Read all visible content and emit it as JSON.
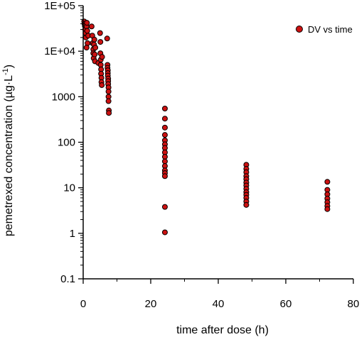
{
  "chart_data": {
    "type": "scatter",
    "xlabel": "time after dose (h)",
    "ylabel_main": "pemetrexed concentration (µg·L",
    "ylabel_sup": "-1",
    "ylabel_tail": ")",
    "xlim": [
      0,
      80
    ],
    "ylim": [
      0.1,
      100000
    ],
    "yscale": "log",
    "grid": false,
    "legend_position": "top-right",
    "x_ticks": [
      {
        "value": 0,
        "label": "0"
      },
      {
        "value": 20,
        "label": "20"
      },
      {
        "value": 40,
        "label": "40"
      },
      {
        "value": 60,
        "label": "60"
      },
      {
        "value": 80,
        "label": "80"
      }
    ],
    "y_ticks": [
      {
        "value": 100000,
        "label": "1E+05"
      },
      {
        "value": 10000,
        "label": "1E+04"
      },
      {
        "value": 1000,
        "label": "1000"
      },
      {
        "value": 100,
        "label": "100"
      },
      {
        "value": 10,
        "label": "10"
      },
      {
        "value": 1,
        "label": "1"
      },
      {
        "value": 0.1,
        "label": "0.1"
      }
    ],
    "series": [
      {
        "name": "DV vs time",
        "color": "#cc1111",
        "points": [
          [
            0.3,
            45000
          ],
          [
            0.4,
            40000
          ],
          [
            0.5,
            36000
          ],
          [
            0.6,
            30000
          ],
          [
            0.7,
            25000
          ],
          [
            0.8,
            20000
          ],
          [
            1.0,
            35000
          ],
          [
            1.1,
            42000
          ],
          [
            1.2,
            28000
          ],
          [
            1.3,
            15000
          ],
          [
            1.5,
            22000
          ],
          [
            1.0,
            12000
          ],
          [
            2.5,
            35000
          ],
          [
            2.7,
            22000
          ],
          [
            2.8,
            15000
          ],
          [
            3.0,
            11000
          ],
          [
            3.0,
            9000
          ],
          [
            3.1,
            7000
          ],
          [
            3.2,
            14000
          ],
          [
            3.3,
            18000
          ],
          [
            3.4,
            8500
          ],
          [
            3.5,
            6000
          ],
          [
            3.6,
            12000
          ],
          [
            4.5,
            5500
          ],
          [
            5.0,
            25000
          ],
          [
            5.1,
            16000
          ],
          [
            5.1,
            9000
          ],
          [
            5.2,
            6500
          ],
          [
            5.2,
            5000
          ],
          [
            5.3,
            4000
          ],
          [
            5.3,
            3200
          ],
          [
            5.4,
            2600
          ],
          [
            5.4,
            2100
          ],
          [
            5.5,
            1800
          ],
          [
            5.6,
            7500
          ],
          [
            7.1,
            19000
          ],
          [
            7.2,
            5000
          ],
          [
            7.2,
            4300
          ],
          [
            7.3,
            3800
          ],
          [
            7.3,
            3300
          ],
          [
            7.3,
            2900
          ],
          [
            7.4,
            2500
          ],
          [
            7.4,
            2200
          ],
          [
            7.4,
            1900
          ],
          [
            7.5,
            1600
          ],
          [
            7.5,
            1300
          ],
          [
            7.5,
            1000
          ],
          [
            7.5,
            800
          ],
          [
            7.6,
            500
          ],
          [
            7.6,
            440
          ],
          [
            24.2,
            550
          ],
          [
            24.2,
            330
          ],
          [
            24.2,
            210
          ],
          [
            24.2,
            145
          ],
          [
            24.2,
            110
          ],
          [
            24.2,
            90
          ],
          [
            24.2,
            75
          ],
          [
            24.2,
            60
          ],
          [
            24.2,
            48
          ],
          [
            24.2,
            38
          ],
          [
            24.2,
            30
          ],
          [
            24.2,
            24
          ],
          [
            24.2,
            21
          ],
          [
            24.2,
            18
          ],
          [
            24.2,
            3.8
          ],
          [
            24.2,
            1.05
          ],
          [
            48.3,
            32
          ],
          [
            48.3,
            26
          ],
          [
            48.3,
            22
          ],
          [
            48.3,
            18
          ],
          [
            48.3,
            15.5
          ],
          [
            48.3,
            13
          ],
          [
            48.3,
            11.2
          ],
          [
            48.3,
            9.5
          ],
          [
            48.3,
            8
          ],
          [
            48.3,
            7
          ],
          [
            48.3,
            6
          ],
          [
            48.3,
            5
          ],
          [
            48.3,
            4.2
          ],
          [
            72.3,
            13.5
          ],
          [
            72.3,
            9
          ],
          [
            72.3,
            7.2
          ],
          [
            72.3,
            5.8
          ],
          [
            72.3,
            4.8
          ],
          [
            72.3,
            4
          ],
          [
            72.3,
            3.4
          ]
        ]
      }
    ]
  }
}
